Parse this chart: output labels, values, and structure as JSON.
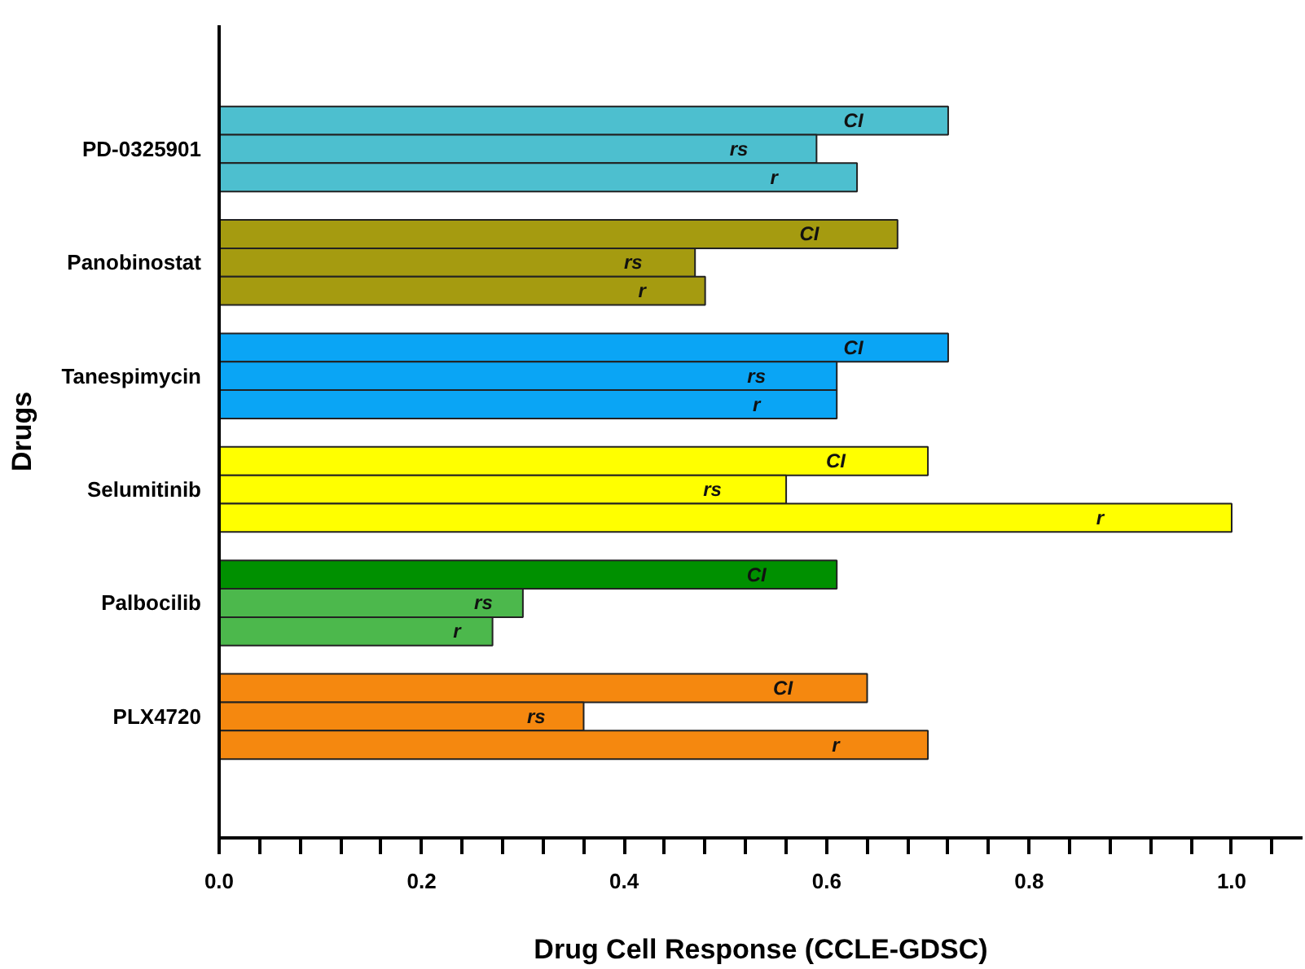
{
  "chart_data": {
    "type": "bar",
    "orientation": "horizontal",
    "categories": [
      "PD-0325901",
      "Panobinostat",
      "Tanespimycin",
      "Selumitinib",
      "Palbocilib",
      "PLX4720"
    ],
    "series": [
      {
        "name": "CI",
        "colors": [
          "#4dbfcf",
          "#a59b10",
          "#0aa5f5",
          "#ffff00",
          "#009000",
          "#f5880f"
        ],
        "values": [
          0.72,
          0.67,
          0.72,
          0.7,
          0.61,
          0.64
        ]
      },
      {
        "name": "rs",
        "colors": [
          "#4dbfcf",
          "#a59b10",
          "#0aa5f5",
          "#ffff00",
          "#4cb84c",
          "#f5880f"
        ],
        "values": [
          0.59,
          0.47,
          0.61,
          0.56,
          0.3,
          0.36
        ]
      },
      {
        "name": "r",
        "colors": [
          "#4dbfcf",
          "#a59b10",
          "#0aa5f5",
          "#ffff00",
          "#4cb84c",
          "#f5880f"
        ],
        "values": [
          0.63,
          0.48,
          0.61,
          1.0,
          0.27,
          0.7
        ]
      }
    ],
    "xlabel": "Drug Cell Response (CCLE-GDSC)",
    "ylabel": "Drugs",
    "xlim": [
      0,
      1.07
    ],
    "xticks": [
      {
        "value": 0,
        "label": "0.0"
      },
      {
        "value": 0.04,
        "label": null
      },
      {
        "value": 0.08,
        "label": null
      },
      {
        "value": 0.12,
        "label": null
      },
      {
        "value": 0.16,
        "label": null
      },
      {
        "value": 0.2,
        "label": "0.2"
      },
      {
        "value": 0.24,
        "label": null
      },
      {
        "value": 0.28,
        "label": null
      },
      {
        "value": 0.32,
        "label": null
      },
      {
        "value": 0.36,
        "label": null
      },
      {
        "value": 0.4,
        "label": "0.4"
      },
      {
        "value": 0.44,
        "label": null
      },
      {
        "value": 0.48,
        "label": null
      },
      {
        "value": 0.52,
        "label": null
      },
      {
        "value": 0.56,
        "label": null
      },
      {
        "value": 0.6,
        "label": "0.6"
      },
      {
        "value": 0.64,
        "label": null
      },
      {
        "value": 0.68,
        "label": null
      },
      {
        "value": 0.72,
        "label": null
      },
      {
        "value": 0.76,
        "label": null
      },
      {
        "value": 0.8,
        "label": "0.8"
      },
      {
        "value": 0.84,
        "label": null
      },
      {
        "value": 0.88,
        "label": null
      },
      {
        "value": 0.92,
        "label": null
      },
      {
        "value": 0.96,
        "label": null
      },
      {
        "value": 1.0,
        "label": "1.0"
      },
      {
        "value": 1.04,
        "label": null
      }
    ],
    "grid": false
  }
}
